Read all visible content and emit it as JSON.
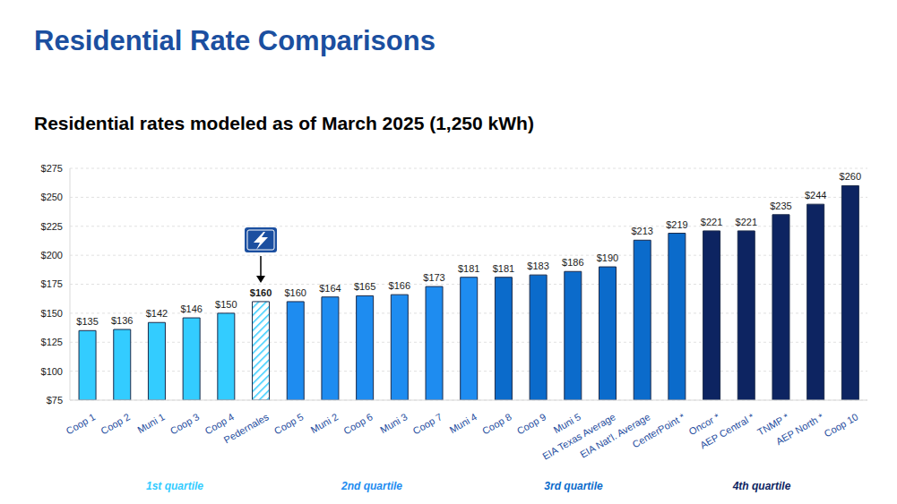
{
  "chart_data": {
    "type": "bar",
    "title": "Residential Rate Comparisons",
    "subtitle": "Residential rates modeled as of March 2025 (1,250 kWh)",
    "categories": [
      "Coop 1",
      "Coop 2",
      "Muni 1",
      "Coop 3",
      "Coop 4",
      "Pedernales",
      "Coop 5",
      "Muni 2",
      "Coop 6",
      "Muni 3",
      "Coop 7",
      "Muni 4",
      "Coop 8",
      "Coop 9",
      "Muni 5",
      "EIA Texas Average",
      "EIA Nat'l. Average",
      "CenterPoint *",
      "Oncor *",
      "AEP Central *",
      "TNMP *",
      "AEP North *",
      "Coop 10"
    ],
    "values": [
      135,
      136,
      142,
      146,
      150,
      160,
      160,
      164,
      165,
      166,
      173,
      181,
      181,
      183,
      186,
      190,
      213,
      219,
      221,
      221,
      235,
      244,
      260
    ],
    "value_labels": [
      "$135",
      "$136",
      "$142",
      "$146",
      "$150",
      "$160",
      "$160",
      "$164",
      "$165",
      "$166",
      "$173",
      "$181",
      "$181",
      "$183",
      "$186",
      "$190",
      "$213",
      "$219",
      "$221",
      "$221",
      "$235",
      "$244",
      "$260"
    ],
    "colors": [
      "#33CCFF",
      "#33CCFF",
      "#33CCFF",
      "#33CCFF",
      "#33CCFF",
      "#33CCFF",
      "#1E8CF0",
      "#1E8CF0",
      "#1E8CF0",
      "#1E8CF0",
      "#1E8CF0",
      "#1E8CF0",
      "#0B6BCB",
      "#0B6BCB",
      "#0B6BCB",
      "#0B6BCB",
      "#0B6BCB",
      "#0B6BCB",
      "#0D2461",
      "#0D2461",
      "#0D2461",
      "#0D2461",
      "#0D2461"
    ],
    "ylim": [
      75,
      275
    ],
    "yticks": [
      {
        "value": 75,
        "label": "$75"
      },
      {
        "value": 100,
        "label": "$100"
      },
      {
        "value": 125,
        "label": "$125"
      },
      {
        "value": 150,
        "label": "$150"
      },
      {
        "value": 175,
        "label": "$175"
      },
      {
        "value": 200,
        "label": "$200"
      },
      {
        "value": 225,
        "label": "$225"
      },
      {
        "value": 250,
        "label": "$250"
      },
      {
        "value": 275,
        "label": "$275"
      }
    ],
    "grid": true,
    "data_labels": true,
    "annotations": [
      "1st quartile",
      "2nd quartile",
      "3rd quartile",
      "4th quartile"
    ]
  }
}
